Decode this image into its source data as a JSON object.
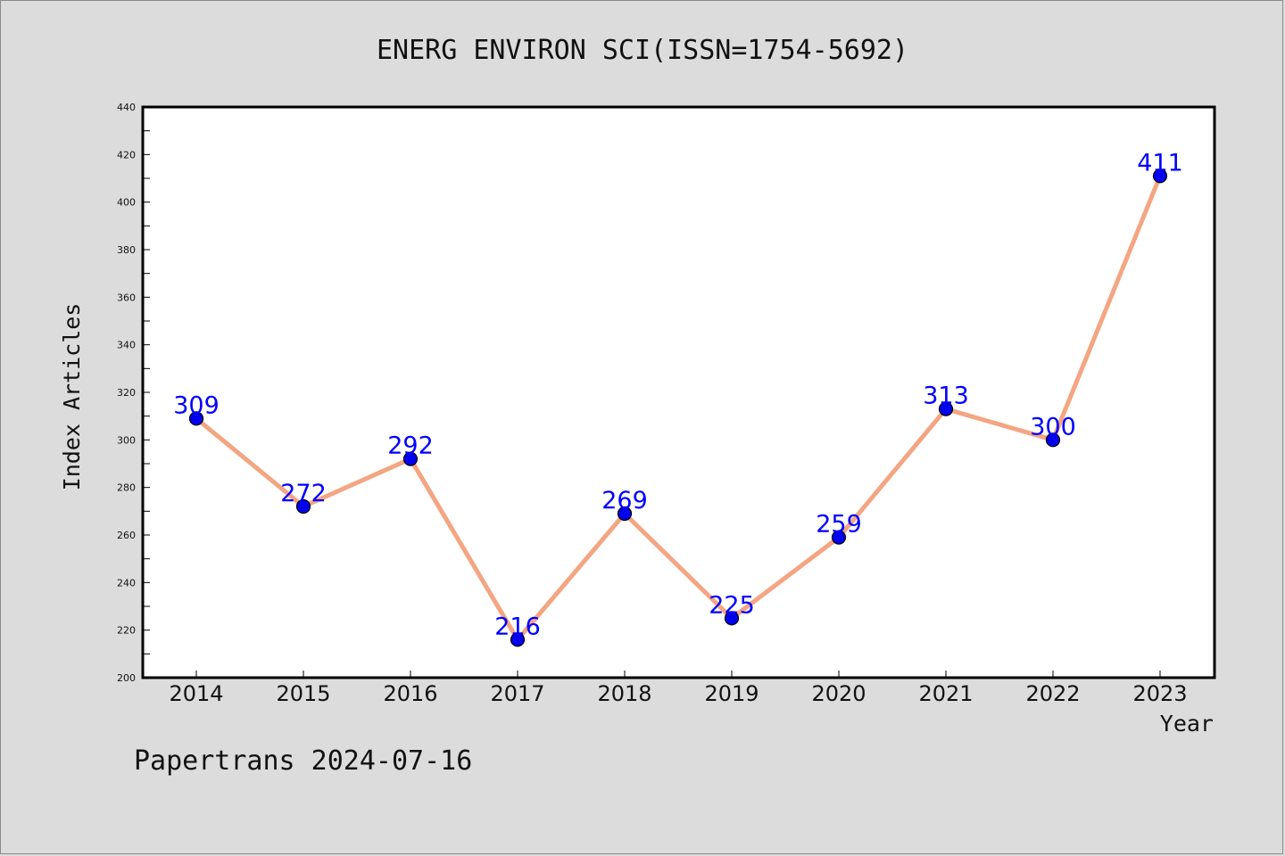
{
  "footer": {
    "credit": "Papertrans 2024-07-16"
  },
  "chart_data": {
    "type": "line",
    "title": "ENERG ENVIRON SCI(ISSN=1754-5692)",
    "xlabel": "Year",
    "ylabel": "Index Articles",
    "categories": [
      "2014",
      "2015",
      "2016",
      "2017",
      "2018",
      "2019",
      "2020",
      "2021",
      "2022",
      "2023"
    ],
    "values": [
      309,
      272,
      292,
      216,
      269,
      225,
      259,
      313,
      300,
      411
    ],
    "data_labels": [
      "309",
      "272",
      "292",
      "216",
      "269",
      "225",
      "259",
      "313",
      "300",
      "411"
    ],
    "ylim": [
      200,
      440
    ],
    "yticks": [
      "200",
      "220",
      "240",
      "260",
      "280",
      "300",
      "320",
      "340",
      "360",
      "380",
      "400",
      "420",
      "440"
    ],
    "grid": false,
    "colors": {
      "line": "#f4a582",
      "marker": "#0000ee",
      "label": "#0000ff",
      "background": "#dcdcdc",
      "plot_background": "#ffffff"
    }
  }
}
